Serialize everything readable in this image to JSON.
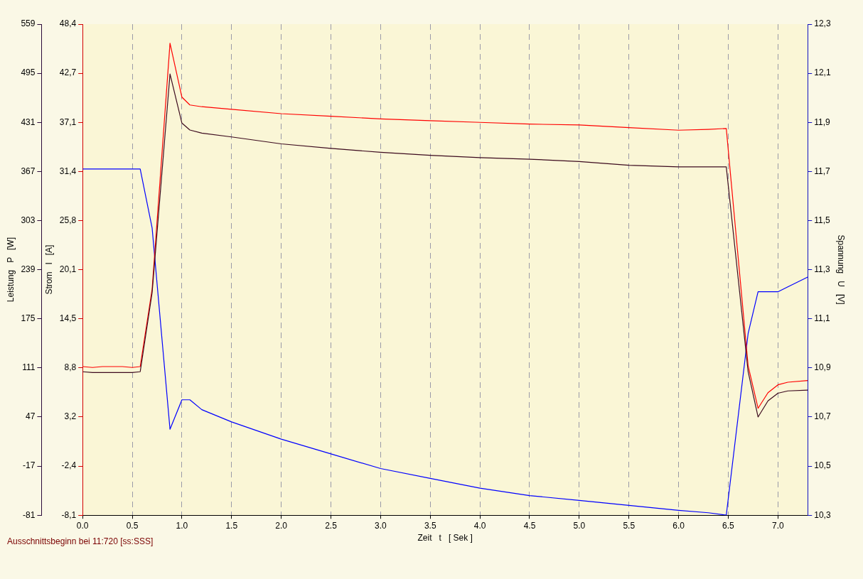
{
  "chart_data": {
    "type": "line",
    "xlabel": "Zeit   t   [ Sek ]",
    "ylabel": "Leistung   P   [W]",
    "y2label": "Strom   I   [A]",
    "y3label": "Spannung   U   [V]",
    "annotations": [
      "Ausschnittsbeginn bei 11:720 [ss:SSS]"
    ],
    "x": [
      0,
      0.1,
      0.2,
      0.3,
      0.4,
      0.5,
      0.58,
      0.7,
      0.88,
      1.0,
      1.08,
      1.2,
      1.5,
      2.0,
      2.5,
      3.0,
      3.5,
      4.0,
      4.5,
      5.0,
      5.5,
      6.0,
      6.3,
      6.48,
      6.7,
      6.8,
      6.9,
      7.0,
      7.1,
      7.3
    ],
    "series": [
      {
        "color": "#3c0a1e",
        "values": [
          106,
          105,
          105,
          105,
          105,
          105,
          106,
          209,
          494,
          430,
          421,
          417,
          412,
          403,
          397,
          392,
          388,
          385,
          383,
          380,
          375,
          373,
          373,
          373,
          106,
          47,
          68,
          78,
          81,
          82
        ]
      },
      {
        "color": "#ff0000",
        "axis": "y2",
        "values": [
          9.0,
          8.9,
          9.0,
          9.0,
          9.0,
          8.9,
          9.0,
          17.9,
          46.2,
          40.0,
          39.1,
          38.9,
          38.6,
          38.1,
          37.8,
          37.5,
          37.3,
          37.1,
          36.9,
          36.8,
          36.5,
          36.2,
          36.3,
          36.4,
          9.1,
          4.2,
          6.0,
          6.9,
          7.2,
          7.4
        ]
      },
      {
        "color": "#0000ff",
        "axis": "y3",
        "values": [
          11.71,
          11.71,
          11.71,
          11.71,
          11.71,
          11.71,
          11.71,
          11.47,
          10.65,
          10.77,
          10.77,
          10.73,
          10.68,
          10.61,
          10.55,
          10.49,
          10.45,
          10.41,
          10.38,
          10.36,
          10.34,
          10.32,
          10.31,
          10.3,
          11.04,
          11.21,
          11.21,
          11.21,
          11.23,
          11.27
        ]
      }
    ],
    "xlim": [
      0,
      7.3
    ],
    "xticks": [
      {
        "value": 0,
        "label": "0.0"
      },
      {
        "value": 0.5,
        "label": "0.5"
      },
      {
        "value": 1,
        "label": "1.0"
      },
      {
        "value": 1.5,
        "label": "1.5"
      },
      {
        "value": 2,
        "label": "2.0"
      },
      {
        "value": 2.5,
        "label": "2.5"
      },
      {
        "value": 3,
        "label": "3.0"
      },
      {
        "value": 3.5,
        "label": "3.5"
      },
      {
        "value": 4,
        "label": "4.0"
      },
      {
        "value": 4.5,
        "label": "4.5"
      },
      {
        "value": 5,
        "label": "5.0"
      },
      {
        "value": 5.5,
        "label": "5.5"
      },
      {
        "value": 6,
        "label": "6.0"
      },
      {
        "value": 6.5,
        "label": "6.5"
      },
      {
        "value": 7,
        "label": "7.0"
      }
    ],
    "ylim": [
      -81,
      559
    ],
    "yticks": [
      -81,
      -17,
      47,
      111,
      175,
      239,
      303,
      367,
      431,
      495,
      559
    ],
    "y2lim": [
      -8.1,
      48.4
    ],
    "y2ticks": [
      {
        "value": -8.1,
        "label": "-8,1"
      },
      {
        "value": -2.45,
        "label": "-2,4"
      },
      {
        "value": 3.2,
        "label": "3,2"
      },
      {
        "value": 8.85,
        "label": "8,8"
      },
      {
        "value": 14.5,
        "label": "14,5"
      },
      {
        "value": 20.15,
        "label": "20,1"
      },
      {
        "value": 25.8,
        "label": "25,8"
      },
      {
        "value": 31.45,
        "label": "31,4"
      },
      {
        "value": 37.1,
        "label": "37,1"
      },
      {
        "value": 42.75,
        "label": "42,7"
      },
      {
        "value": 48.4,
        "label": "48,4"
      }
    ],
    "y3lim": [
      10.3,
      12.3
    ],
    "y3ticks": [
      {
        "value": 10.3,
        "label": "10,3"
      },
      {
        "value": 10.5,
        "label": "10,5"
      },
      {
        "value": 10.7,
        "label": "10,7"
      },
      {
        "value": 10.9,
        "label": "10,9"
      },
      {
        "value": 11.1,
        "label": "11,1"
      },
      {
        "value": 11.3,
        "label": "11,3"
      },
      {
        "value": 11.5,
        "label": "11,5"
      },
      {
        "value": 11.7,
        "label": "11,7"
      },
      {
        "value": 11.9,
        "label": "11,9"
      },
      {
        "value": 12.1,
        "label": "12,1"
      },
      {
        "value": 12.3,
        "label": "12,3"
      }
    ],
    "grid": "x",
    "legend": false,
    "marker": "none",
    "line_style": "solid"
  }
}
